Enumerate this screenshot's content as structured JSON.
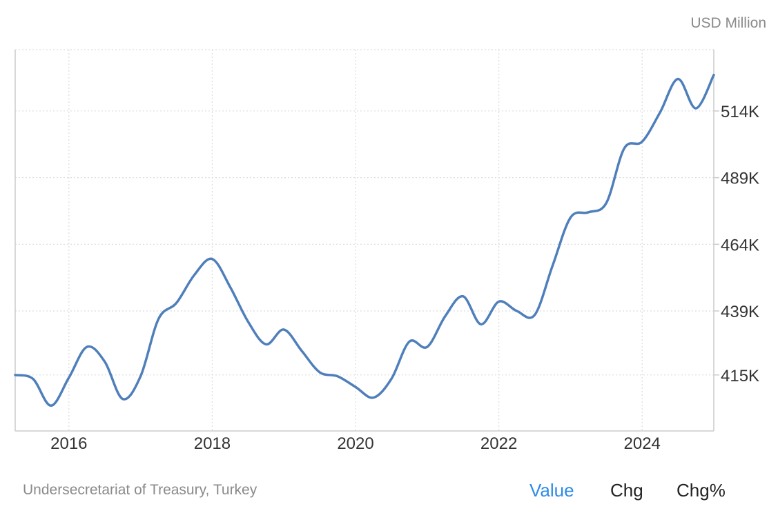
{
  "unit_label": "USD Million",
  "source": "Undersecretariat of Treasury, Turkey",
  "tabs": {
    "value": "Value",
    "chg": "Chg",
    "chg_pct": "Chg%"
  },
  "colors": {
    "line": "#4f7fbb",
    "grid": "#dcdcdc",
    "active_tab": "#2d8be5"
  },
  "chart_data": {
    "type": "line",
    "ylabel": "USD Million",
    "x_ticks": [
      "2016",
      "2018",
      "2020",
      "2022",
      "2024"
    ],
    "y_ticks": [
      {
        "value": 415,
        "label": "415K"
      },
      {
        "value": 439,
        "label": "439K"
      },
      {
        "value": 464,
        "label": "464K"
      },
      {
        "value": 489,
        "label": "489K"
      },
      {
        "value": 514,
        "label": "514K"
      }
    ],
    "xlim": [
      2015.25,
      2025.0
    ],
    "ylim": [
      394,
      537
    ],
    "grid": true,
    "series": [
      {
        "values": [
          {
            "x": 2015.25,
            "y": 415.0
          },
          {
            "x": 2015.5,
            "y": 413.5
          },
          {
            "x": 2015.75,
            "y": 403.5
          },
          {
            "x": 2016.0,
            "y": 414.0
          },
          {
            "x": 2016.25,
            "y": 425.5
          },
          {
            "x": 2016.5,
            "y": 420.0
          },
          {
            "x": 2016.75,
            "y": 406.0
          },
          {
            "x": 2017.0,
            "y": 414.5
          },
          {
            "x": 2017.25,
            "y": 436.0
          },
          {
            "x": 2017.5,
            "y": 442.0
          },
          {
            "x": 2017.75,
            "y": 452.5
          },
          {
            "x": 2018.0,
            "y": 458.5
          },
          {
            "x": 2018.25,
            "y": 448.0
          },
          {
            "x": 2018.5,
            "y": 435.0
          },
          {
            "x": 2018.75,
            "y": 426.5
          },
          {
            "x": 2019.0,
            "y": 432.0
          },
          {
            "x": 2019.25,
            "y": 424.0
          },
          {
            "x": 2019.5,
            "y": 416.0
          },
          {
            "x": 2019.75,
            "y": 414.5
          },
          {
            "x": 2020.0,
            "y": 410.5
          },
          {
            "x": 2020.25,
            "y": 406.5
          },
          {
            "x": 2020.5,
            "y": 413.5
          },
          {
            "x": 2020.75,
            "y": 427.5
          },
          {
            "x": 2021.0,
            "y": 425.5
          },
          {
            "x": 2021.25,
            "y": 437.0
          },
          {
            "x": 2021.5,
            "y": 444.5
          },
          {
            "x": 2021.75,
            "y": 434.0
          },
          {
            "x": 2022.0,
            "y": 442.5
          },
          {
            "x": 2022.25,
            "y": 439.0
          },
          {
            "x": 2022.5,
            "y": 437.5
          },
          {
            "x": 2022.75,
            "y": 456.0
          },
          {
            "x": 2023.0,
            "y": 474.0
          },
          {
            "x": 2023.25,
            "y": 476.0
          },
          {
            "x": 2023.5,
            "y": 479.5
          },
          {
            "x": 2023.75,
            "y": 500.0
          },
          {
            "x": 2024.0,
            "y": 502.5
          },
          {
            "x": 2024.25,
            "y": 513.5
          },
          {
            "x": 2024.5,
            "y": 526.0
          },
          {
            "x": 2024.75,
            "y": 515.0
          },
          {
            "x": 2025.0,
            "y": 527.5
          }
        ]
      }
    ]
  }
}
